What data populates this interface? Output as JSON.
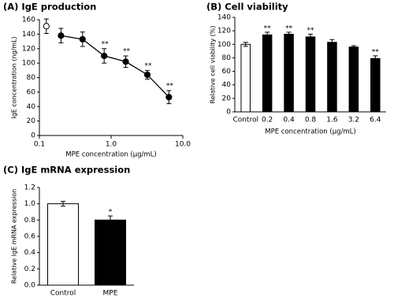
{
  "chart_data": [
    {
      "type": "line",
      "title": "(A) IgE production",
      "x_label": "MPE concentration (μg/mL)",
      "y_label": "IgE concentration (ng/mL)",
      "xscale": "log",
      "xlim": [
        0.1,
        10
      ],
      "xticks": [
        0.1,
        {
          "value": 1,
          "label": "1.0"
        },
        {
          "value": 10,
          "label": "10.0"
        }
      ],
      "ylim": [
        0,
        160
      ],
      "yticks": [
        0,
        20,
        40,
        60,
        80,
        100,
        120,
        140,
        160
      ],
      "series": [
        {
          "marker": "open",
          "color": "#000000",
          "x": [
            0.125
          ],
          "values": [
            151
          ],
          "errors": [
            10
          ]
        },
        {
          "marker": "filled",
          "color": "#000000",
          "x": [
            0.2,
            0.4,
            0.8,
            1.6,
            3.2,
            6.4
          ],
          "values": [
            138,
            133,
            110,
            102,
            84,
            53
          ],
          "errors": [
            10,
            10,
            10,
            8,
            6,
            9
          ],
          "significance": [
            null,
            null,
            "**",
            "**",
            "**",
            "**"
          ]
        }
      ]
    },
    {
      "type": "bar",
      "title": "(B) Cell viability",
      "x_label": "MPE concentration (μg/mL)",
      "y_label": "Relative cell viability (%)",
      "categories": [
        "Control",
        "0.2",
        "0.4",
        "0.8",
        "1.6",
        "3.2",
        "6.4"
      ],
      "values": [
        100,
        114,
        115,
        111,
        103,
        96,
        79
      ],
      "errors": [
        3,
        4,
        3,
        4,
        4,
        2,
        4
      ],
      "colors": [
        "#ffffff",
        "#000000",
        "#000000",
        "#000000",
        "#000000",
        "#000000",
        "#000000"
      ],
      "significance": [
        null,
        "**",
        "**",
        "**",
        null,
        null,
        "**"
      ],
      "ylim": [
        0,
        140
      ],
      "yticks": [
        0,
        20,
        40,
        60,
        80,
        100,
        120,
        140
      ]
    },
    {
      "type": "bar",
      "title": "(C) IgE mRNA expression",
      "y_label": "Relative IgE mRNA expression",
      "categories": [
        "Control",
        "MPE"
      ],
      "values": [
        1.0,
        0.8
      ],
      "errors": [
        0.03,
        0.05
      ],
      "colors": [
        "#ffffff",
        "#000000"
      ],
      "significance": [
        null,
        "*"
      ],
      "ylim": [
        0,
        1.2
      ],
      "yticks": [
        {
          "value": 0,
          "label": "0.0"
        },
        0.2,
        0.4,
        0.6,
        0.8,
        {
          "value": 1,
          "label": "1.0"
        },
        1.2
      ]
    }
  ]
}
